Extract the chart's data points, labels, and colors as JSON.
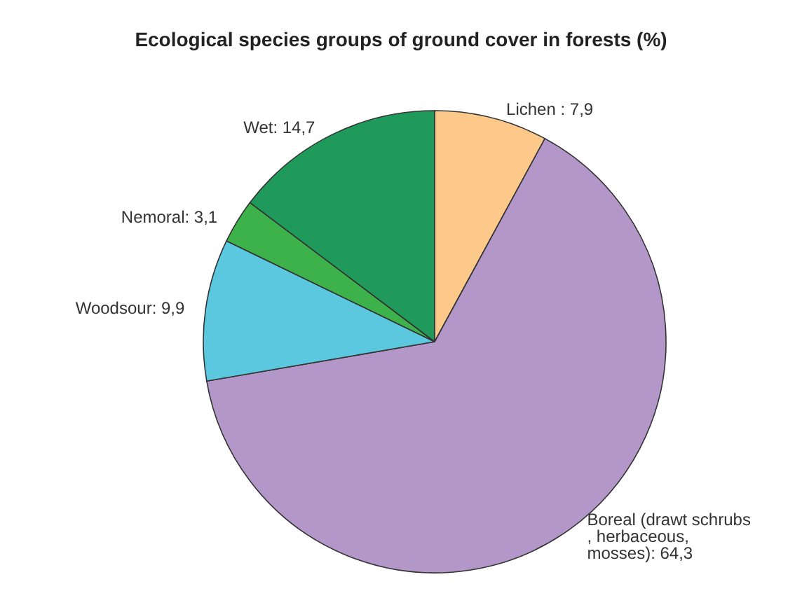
{
  "chart_data": {
    "type": "pie",
    "title": "Ecological species groups of ground cover in forests (%)",
    "categories": [
      "Lichen ",
      "Boreal (drawt schrubs, herbaceous, mosses)",
      "Woodsour",
      "Nemoral",
      "Wet"
    ],
    "values": [
      7.9,
      64.3,
      9.9,
      3.1,
      14.7
    ],
    "value_labels": [
      "7,9",
      "64,3",
      "9,9",
      "3,1",
      "14,7"
    ],
    "colors": [
      "#fcc98a",
      "#b397c9",
      "#5bc8df",
      "#3db24a",
      "#1f9a5a"
    ],
    "legend": false
  }
}
